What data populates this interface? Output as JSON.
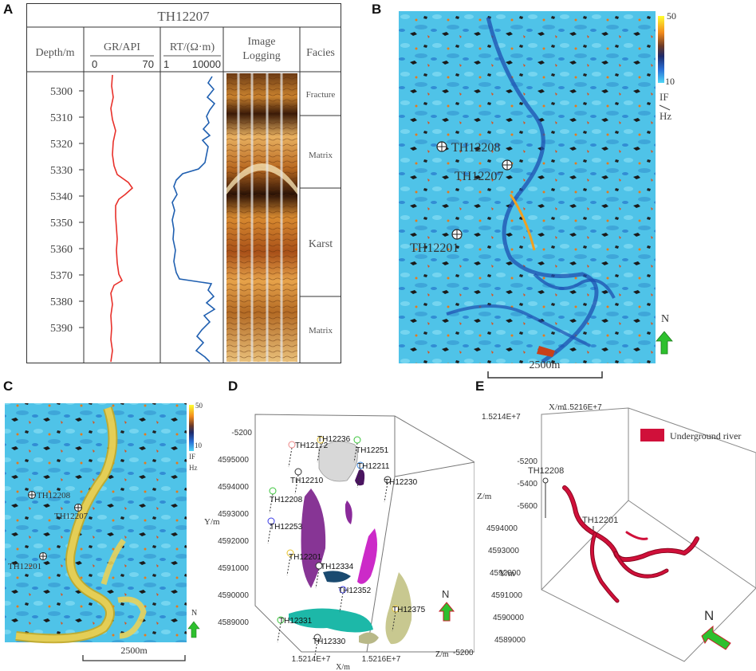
{
  "panels": {
    "a": "A",
    "b": "B",
    "c": "C",
    "d": "D",
    "e": "E"
  },
  "log": {
    "well": "TH12207",
    "depth_header": "Depth/m",
    "gr_header": "GR/API",
    "gr_range": [
      "0",
      "70"
    ],
    "rt_header": "RT/(Ω·m)",
    "rt_range": [
      "1",
      "10000"
    ],
    "image_header": [
      "Image",
      "Logging"
    ],
    "facies_header": "Facies",
    "depth_ticks": [
      "5300",
      "5310",
      "5320",
      "5330",
      "5340",
      "5350",
      "5360",
      "5370",
      "5380",
      "5390"
    ],
    "facies": [
      "Fracture",
      "Matrix",
      "Karst",
      "Matrix"
    ]
  },
  "map_b": {
    "colorbar_max": "50",
    "colorbar_min": "10",
    "colorbar_unit": [
      "IF",
      "Hz"
    ],
    "wells": [
      "TH12208",
      "TH12207",
      "TH12201"
    ],
    "north": "N",
    "scale": "2500m"
  },
  "map_c": {
    "colorbar_max": "50",
    "colorbar_min": "10",
    "colorbar_unit": [
      "IF",
      "Hz"
    ],
    "wells": [
      "TH12208",
      "TH12207",
      "TH12201"
    ],
    "north": "N",
    "scale": "2500m"
  },
  "view_d": {
    "z_ticks_left": [
      "-5200"
    ],
    "y_ticks": [
      "4595000",
      "4594000",
      "4593000",
      "4592000",
      "4591000",
      "4590000",
      "4589000"
    ],
    "y_label": "Y/m",
    "x_ticks": [
      "1.5214E+7",
      "1.5216E+7"
    ],
    "x_label": "X/m",
    "z_tick_right": "-5200",
    "z_label": "Z/m",
    "wells": [
      "TH12172",
      "TH12236",
      "TH12251",
      "TH12211",
      "TH12230",
      "TH12210",
      "TH12208",
      "TH12253",
      "TH12201",
      "TH12334",
      "TH12352",
      "TH12375",
      "TH12331",
      "TH12330"
    ],
    "north": "N"
  },
  "view_e": {
    "legend": "Underground river",
    "x_label": "X/m",
    "x_ticks": [
      "1.5216E+7",
      "1.5214E+7"
    ],
    "z_ticks": [
      "-5200",
      "-5400",
      "-5600"
    ],
    "z_label": "Z/m",
    "y_ticks": [
      "4594000",
      "4593000",
      "4592000",
      "4591000",
      "4590000",
      "4589000"
    ],
    "y_label": "Y/m",
    "wells": [
      "TH12208",
      "TH12201"
    ],
    "north": "N",
    "colors": {
      "river": "#d0103a"
    }
  }
}
